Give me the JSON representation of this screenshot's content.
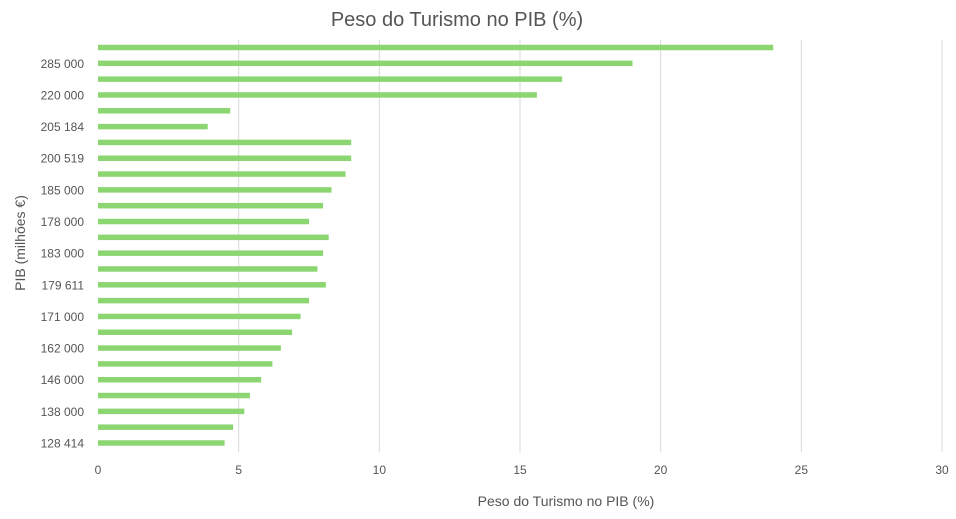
{
  "chart_data": {
    "type": "bar",
    "orientation": "horizontal",
    "title": "Peso do Turismo no PIB (%)",
    "xlabel": "Peso do Turismo no PIB (%)",
    "ylabel": "PIB (milhões €)",
    "xlim": [
      0,
      30
    ],
    "xticks": [
      0,
      5,
      10,
      15,
      20,
      25,
      30
    ],
    "grid": "vertical",
    "legend": "none",
    "color": "#8cd672",
    "categories": [
      "",
      "285 000",
      "",
      "220 000",
      "",
      "205 184",
      "",
      "200 519",
      "",
      "185 000",
      "",
      "178 000",
      "",
      "183 000",
      "",
      "179 611",
      "",
      "171 000",
      "",
      "162 000",
      "",
      "146 000",
      "",
      "138 000",
      "",
      "128 414"
    ],
    "values": [
      24.0,
      19.0,
      16.5,
      15.6,
      4.7,
      3.9,
      9.0,
      9.0,
      8.8,
      8.3,
      8.0,
      7.5,
      8.2,
      8.0,
      7.8,
      8.1,
      7.5,
      7.2,
      6.9,
      6.5,
      6.2,
      5.8,
      5.4,
      5.2,
      4.8,
      4.5
    ]
  }
}
